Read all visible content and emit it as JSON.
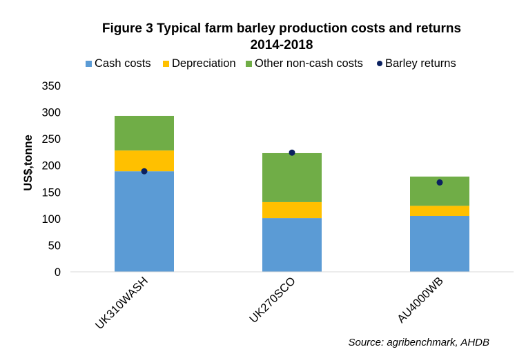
{
  "chart_data": {
    "type": "bar",
    "stacked": true,
    "title": "Figure 3  Typical farm barley production costs and returns",
    "subtitle": "2014-2018",
    "xlabel": "",
    "ylabel": "US$,tonne",
    "ylim": [
      0,
      350
    ],
    "yticks": [
      "0",
      "50",
      "100",
      "150",
      "200",
      "250",
      "300",
      "350"
    ],
    "grid": false,
    "legend_position": "top",
    "categories": [
      "UK310WASH",
      "UK270SCO",
      "AU4000WB"
    ],
    "series": [
      {
        "name": "Cash costs",
        "kind": "bar",
        "color": "#5B9BD5",
        "values": [
          189,
          101,
          105
        ]
      },
      {
        "name": "Depreciation",
        "kind": "bar",
        "color": "#FFC000",
        "values": [
          39,
          30,
          19
        ]
      },
      {
        "name": "Other non-cash costs",
        "kind": "bar",
        "color": "#70AD47",
        "values": [
          65,
          92,
          55
        ]
      },
      {
        "name": "Barley returns",
        "kind": "point",
        "color": "#0B2160",
        "values": [
          189,
          224,
          168
        ]
      }
    ],
    "source": "Source: agribenchmark, AHDB"
  }
}
